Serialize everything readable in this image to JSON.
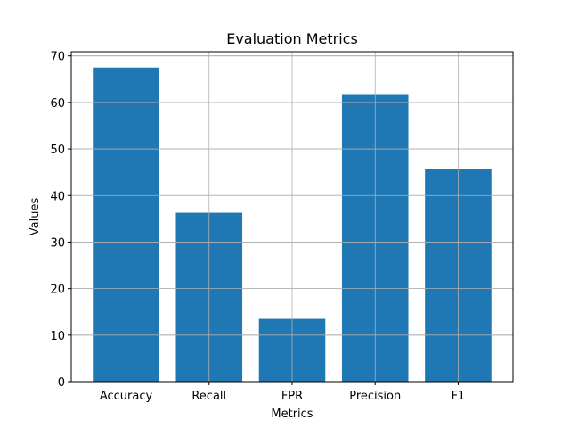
{
  "chart_data": {
    "type": "bar",
    "title": "Evaluation Metrics",
    "xlabel": "Metrics",
    "ylabel": "Values",
    "categories": [
      "Accuracy",
      "Recall",
      "FPR",
      "Precision",
      "F1"
    ],
    "values": [
      67.5,
      36.3,
      13.5,
      61.8,
      45.7
    ],
    "ylim": [
      0,
      70.9
    ],
    "yticks": [
      0,
      10,
      20,
      30,
      40,
      50,
      60,
      70
    ],
    "grid": true,
    "bar_color": "#1f77b4"
  }
}
